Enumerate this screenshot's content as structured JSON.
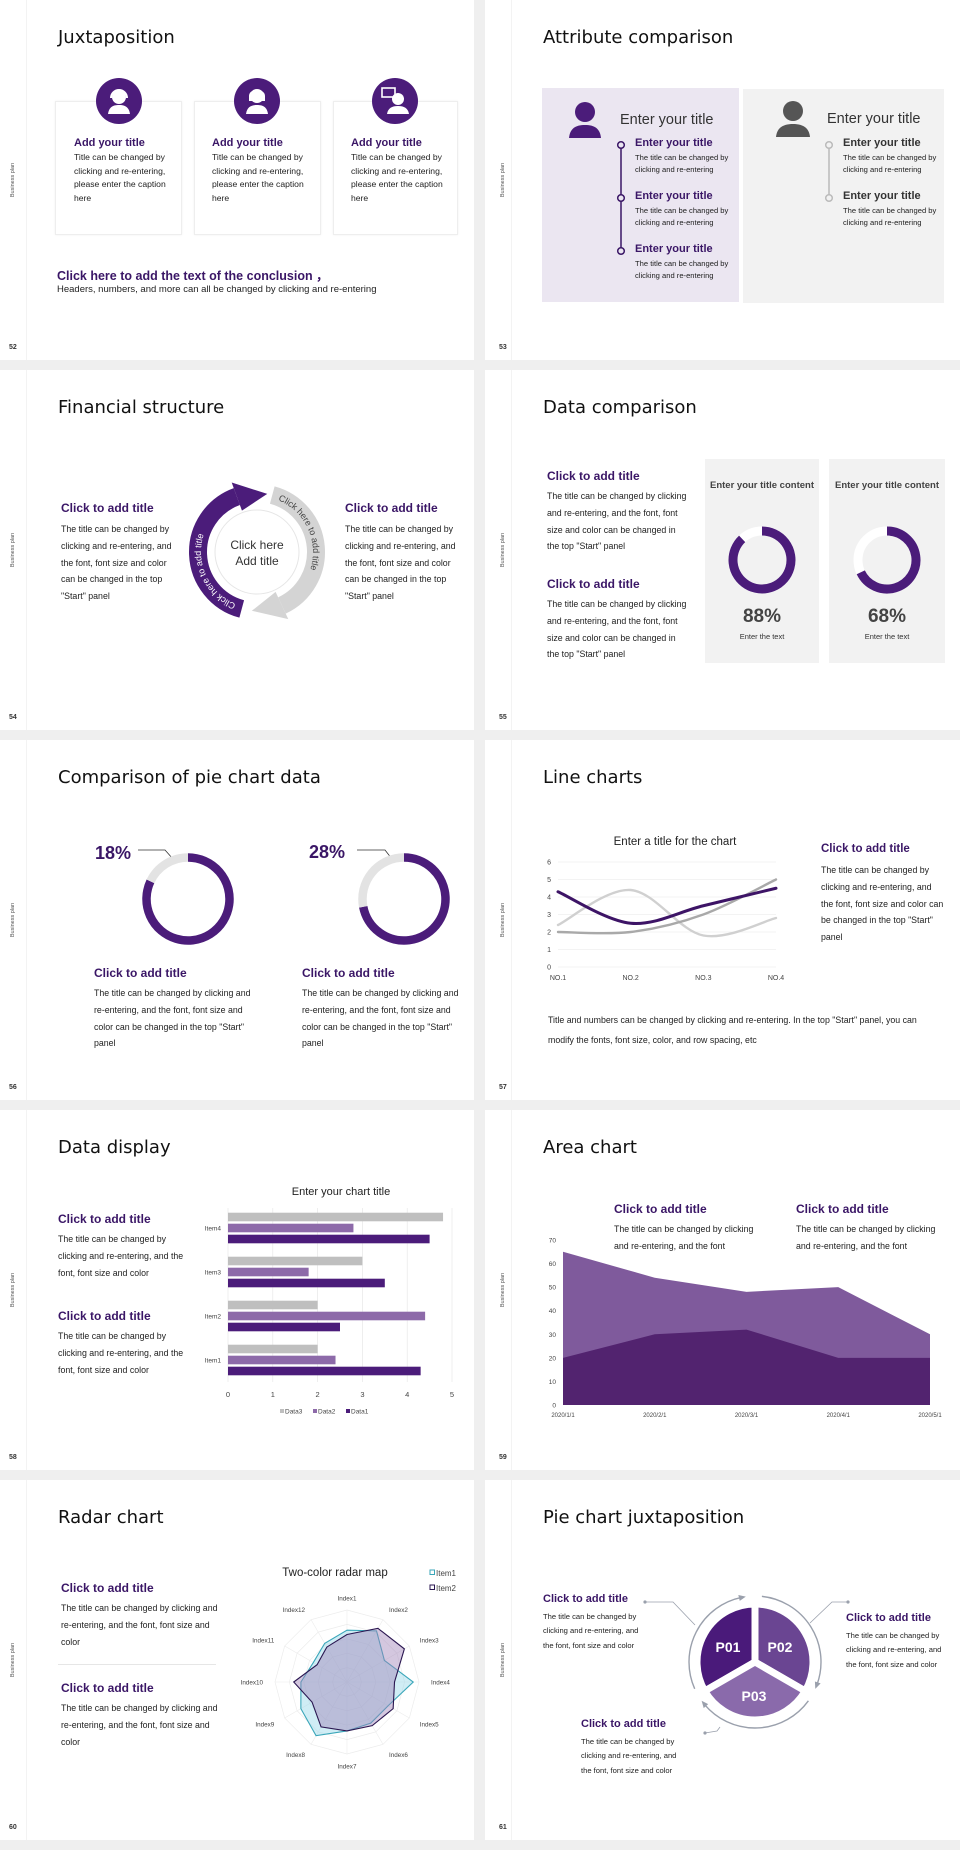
{
  "sidebar_label": "Business plan",
  "colors": {
    "primary": "#4b1c7a",
    "heading": "#3a1666",
    "panel_purple": "#ebe6f1",
    "panel_gray": "#f2f2f2",
    "gray": "#d9d9d9"
  },
  "slides": {
    "s52": {
      "number": "52",
      "title": "Juxtaposition",
      "cards": [
        {
          "icon": "female-support-icon",
          "title": "Add your title",
          "body": "Title can be changed by clicking and re-entering, please enter the caption here"
        },
        {
          "icon": "female-user-icon",
          "title": "Add your title",
          "body": "Title can be changed by clicking and re-entering, please enter the caption here"
        },
        {
          "icon": "user-chat-icon",
          "title": "Add your title",
          "body": "Title can be changed by clicking and re-entering, please enter the caption here"
        }
      ],
      "conclusion_title": "Click here to add the text of the conclusion ，",
      "conclusion_body": "Headers, numbers, and more can all be changed by clicking and re-entering"
    },
    "s53": {
      "number": "53",
      "title": "Attribute comparison",
      "left": {
        "heading": "Enter your title",
        "icon": "female-user-icon",
        "items": [
          {
            "title": "Enter your title",
            "body": "The title can be changed by clicking and re-entering"
          },
          {
            "title": "Enter your title",
            "body": "The title can be changed by clicking and re-entering"
          },
          {
            "title": "Enter your title",
            "body": "The title can be changed by clicking and re-entering"
          }
        ]
      },
      "right": {
        "heading": "Enter your title",
        "icon": "male-user-icon",
        "items": [
          {
            "title": "Enter your title",
            "body": "The title can be changed by clicking and re-entering"
          },
          {
            "title": "Enter your title",
            "body": "The title can be changed by clicking and re-entering"
          }
        ]
      }
    },
    "s54": {
      "number": "54",
      "title": "Financial structure",
      "left": {
        "title": "Click to add title",
        "body": "The title can be changed by clicking and re-entering, and the font, font size and color can be changed in the top \"Start\" panel"
      },
      "right": {
        "title": "Click to add title",
        "body": "The title can be changed by clicking and re-entering, and the font, font size and color can be changed in the top \"Start\" panel"
      },
      "center_line1": "Click here",
      "center_line2": "Add title",
      "arc_purple_text": "Click here to add title",
      "arc_gray_text": "Click here to add title"
    },
    "s55": {
      "number": "55",
      "title": "Data comparison",
      "blocks": [
        {
          "title": "Click to add title",
          "body": "The title can be changed by clicking and re-entering, and the font, font size and color can be changed in the top \"Start\" panel"
        },
        {
          "title": "Click to add title",
          "body": "The title can be changed by clicking and re-entering, and the font, font size and color can be changed in the top \"Start\" panel"
        }
      ],
      "panels": [
        {
          "heading": "Enter your title content",
          "value": 88,
          "label": "88%",
          "sub": "Enter the text"
        },
        {
          "heading": "Enter your title content",
          "value": 68,
          "label": "68%",
          "sub": "Enter the text"
        }
      ]
    },
    "s56": {
      "number": "56",
      "title": "Comparison of pie chart data",
      "items": [
        {
          "value": 18,
          "label": "18%",
          "title": "Click to add title",
          "body": "The title can be changed by clicking and re-entering, and the font, font size and color can be changed in the top \"Start\" panel"
        },
        {
          "value": 28,
          "label": "28%",
          "title": "Click to add title",
          "body": "The title can be changed by clicking and re-entering, and the font, font size and color can be changed in the top \"Start\" panel"
        }
      ]
    },
    "s57": {
      "number": "57",
      "title": "Line charts",
      "side": {
        "title": "Click to add title",
        "body": "The title can be changed by clicking and re-entering, and the font, font size and color can be changed in the top \"Start\" panel"
      },
      "footer": "Title and numbers can be changed by clicking and re-entering. In the top \"Start\" panel, you can modify the fonts, font size, color, and row spacing, etc"
    },
    "s58": {
      "number": "58",
      "title": "Data display",
      "blocks": [
        {
          "title": "Click to add title",
          "body": "The title can be changed by clicking and re-entering, and the font, font size and color"
        },
        {
          "title": "Click to add title",
          "body": "The title can be changed by clicking and re-entering, and the font, font size and color"
        }
      ]
    },
    "s59": {
      "number": "59",
      "title": "Area chart",
      "blocks": [
        {
          "title": "Click to add title",
          "body": "The title can be changed by clicking and re-entering, and the font"
        },
        {
          "title": "Click to add title",
          "body": "The title can be changed by clicking and re-entering, and the font"
        }
      ]
    },
    "s60": {
      "number": "60",
      "title": "Radar chart",
      "blocks": [
        {
          "title": "Click to add title",
          "body": "The title can be changed by clicking and re-entering, and the font, font size and color"
        },
        {
          "title": "Click to add title",
          "body": "The title can be changed by clicking and re-entering, and the font, font size and color"
        }
      ]
    },
    "s61": {
      "number": "61",
      "title": "Pie chart juxtaposition",
      "segments": [
        "P01",
        "P02",
        "P03"
      ],
      "segment_colors": [
        "#4a1a7a",
        "#6a4592",
        "#8a6aab"
      ],
      "blocks": [
        {
          "title": "Click to add title",
          "body": "The title can be changed by clicking and re-entering, and the font, font size and color"
        },
        {
          "title": "Click to add title",
          "body": "The title can be changed by clicking and re-entering, and the font, font size and color"
        },
        {
          "title": "Click to add title",
          "body": "The title can be changed by clicking and re-entering, and the font, font size and color"
        }
      ]
    }
  },
  "chart_data": [
    {
      "id": "line",
      "type": "line",
      "title": "Enter a title for the chart",
      "categories": [
        "NO.1",
        "NO.2",
        "NO.3",
        "NO.4"
      ],
      "ylim": [
        0,
        6
      ],
      "yticks": [
        0,
        1,
        2,
        3,
        4,
        5,
        6
      ],
      "grid": true,
      "smooth": true,
      "series": [
        {
          "values": [
            2.4,
            4.4,
            1.8,
            2.8
          ],
          "color": "#d0d0d0"
        },
        {
          "values": [
            2,
            2,
            3,
            5
          ],
          "color": "#a9a9a9"
        },
        {
          "values": [
            4.3,
            2.5,
            3.5,
            4.5
          ],
          "color": "#3d1466"
        }
      ]
    },
    {
      "id": "bar",
      "type": "bar",
      "orientation": "horizontal",
      "title": "Enter your chart title",
      "categories": [
        "Item1",
        "Item2",
        "Item3",
        "Item4"
      ],
      "xlim": [
        0,
        5
      ],
      "xticks": [
        0,
        1,
        2,
        3,
        4,
        5
      ],
      "grid": true,
      "legend": "bottom",
      "series": [
        {
          "name": "Data3",
          "values": [
            2,
            2,
            3,
            4.8
          ],
          "color": "#bfbfbf"
        },
        {
          "name": "Data2",
          "values": [
            2.4,
            4.4,
            1.8,
            2.8
          ],
          "color": "#8d6aa9"
        },
        {
          "name": "Data1",
          "values": [
            4.3,
            2.5,
            3.5,
            4.5
          ],
          "color": "#4b1c7a"
        }
      ]
    },
    {
      "id": "area",
      "type": "area",
      "categories": [
        "2020/1/1",
        "2020/2/1",
        "2020/3/1",
        "2020/4/1",
        "2020/5/1"
      ],
      "ylim": [
        0,
        70
      ],
      "yticks": [
        0,
        10,
        20,
        30,
        40,
        50,
        60,
        70
      ],
      "series": [
        {
          "values": [
            65,
            54,
            48,
            50,
            30
          ],
          "color": "#7f5a9c"
        },
        {
          "values": [
            20,
            30,
            32,
            20,
            20
          ],
          "color": "#52236f"
        }
      ]
    },
    {
      "id": "radar",
      "type": "radar",
      "title": "Two-color radar map",
      "categories": [
        "Index1",
        "Index2",
        "Index3",
        "Index4",
        "Index5",
        "Index6",
        "Index7",
        "Index8",
        "Index9",
        "Index10",
        "Index11",
        "Index12"
      ],
      "rmax": 5,
      "legend": "top-right",
      "series": [
        {
          "name": "Item1",
          "values": [
            3.6,
            4.1,
            3.0,
            4.6,
            3.3,
            3.3,
            3.4,
            4.3,
            3.7,
            3.2,
            2.7,
            3.1
          ],
          "color": "#3aa6b9"
        },
        {
          "name": "Item2",
          "values": [
            3.3,
            4.3,
            4.6,
            3.3,
            3.7,
            3.5,
            3.4,
            3.6,
            2.8,
            3.7,
            2.4,
            2.8
          ],
          "color": "#2a1650"
        }
      ]
    }
  ]
}
